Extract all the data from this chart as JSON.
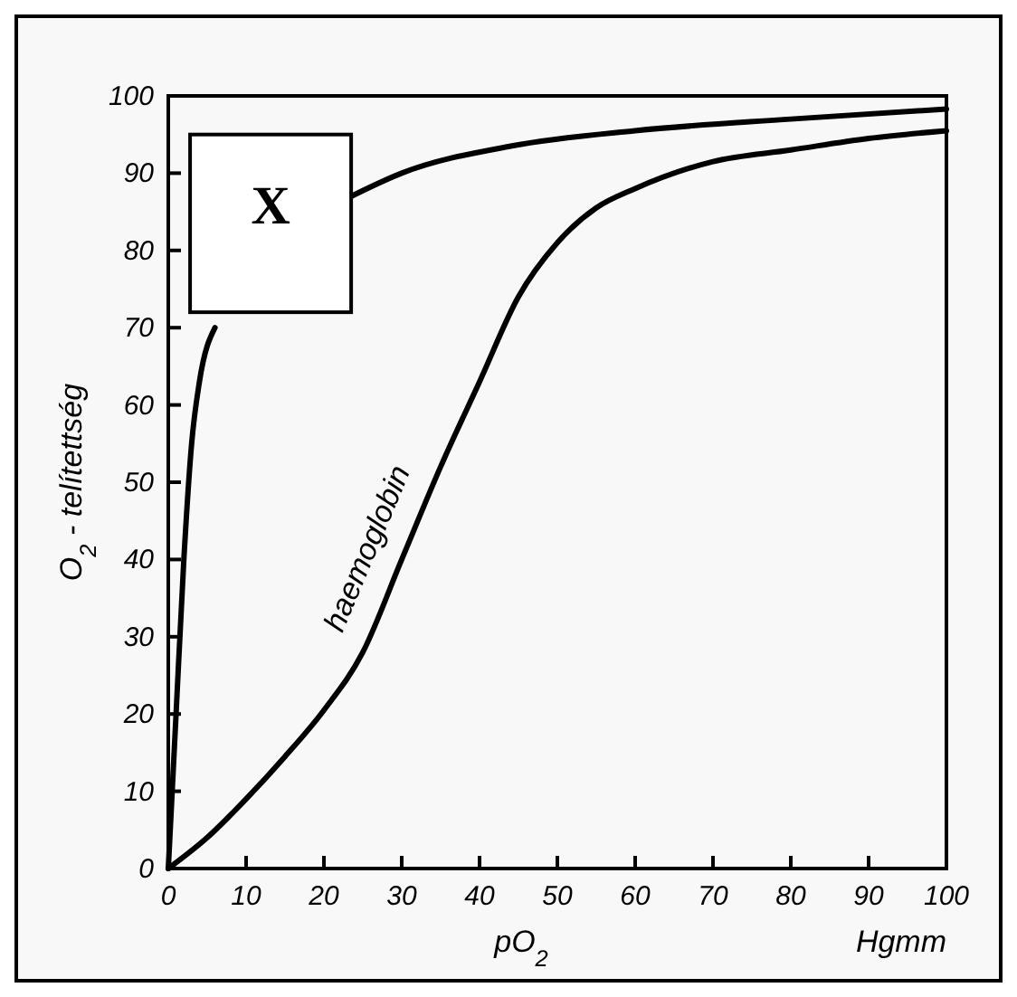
{
  "chart_data": {
    "type": "line",
    "xlabel": "pO$_{2}$",
    "ylabel": "O$_{2}$ - telítettség",
    "xlim": [
      0,
      100
    ],
    "ylim": [
      0,
      100
    ],
    "xticks": [
      0,
      10,
      20,
      30,
      40,
      50,
      60,
      70,
      80,
      90,
      100
    ],
    "yticks": [
      0,
      10,
      20,
      30,
      40,
      50,
      60,
      70,
      80,
      90,
      100
    ],
    "grid": false,
    "marker": "none",
    "line_style": "solid",
    "x": [
      0,
      1,
      2,
      3,
      4,
      6,
      8,
      12,
      18,
      23.5,
      30,
      44,
      60,
      80,
      100
    ],
    "series": [
      {
        "color": "#000000",
        "values": [
          0,
          20,
          40,
          55,
          63,
          70,
          null,
          null,
          null,
          87,
          90,
          93.5,
          95.5,
          97,
          98.3
        ]
      },
      {
        "name": "haemoglobin",
        "color": "#000000",
        "x": [
          0,
          5,
          10,
          15,
          20,
          25,
          30,
          35,
          40,
          45,
          50,
          55,
          60,
          70,
          80,
          90,
          100
        ],
        "values": [
          0,
          4,
          9,
          14.5,
          20.5,
          28,
          40,
          52,
          63,
          74,
          81,
          85.5,
          88,
          91.5,
          93,
          94.5,
          95.5
        ]
      }
    ],
    "annotations": [
      "X",
      "Hgmm"
    ]
  }
}
